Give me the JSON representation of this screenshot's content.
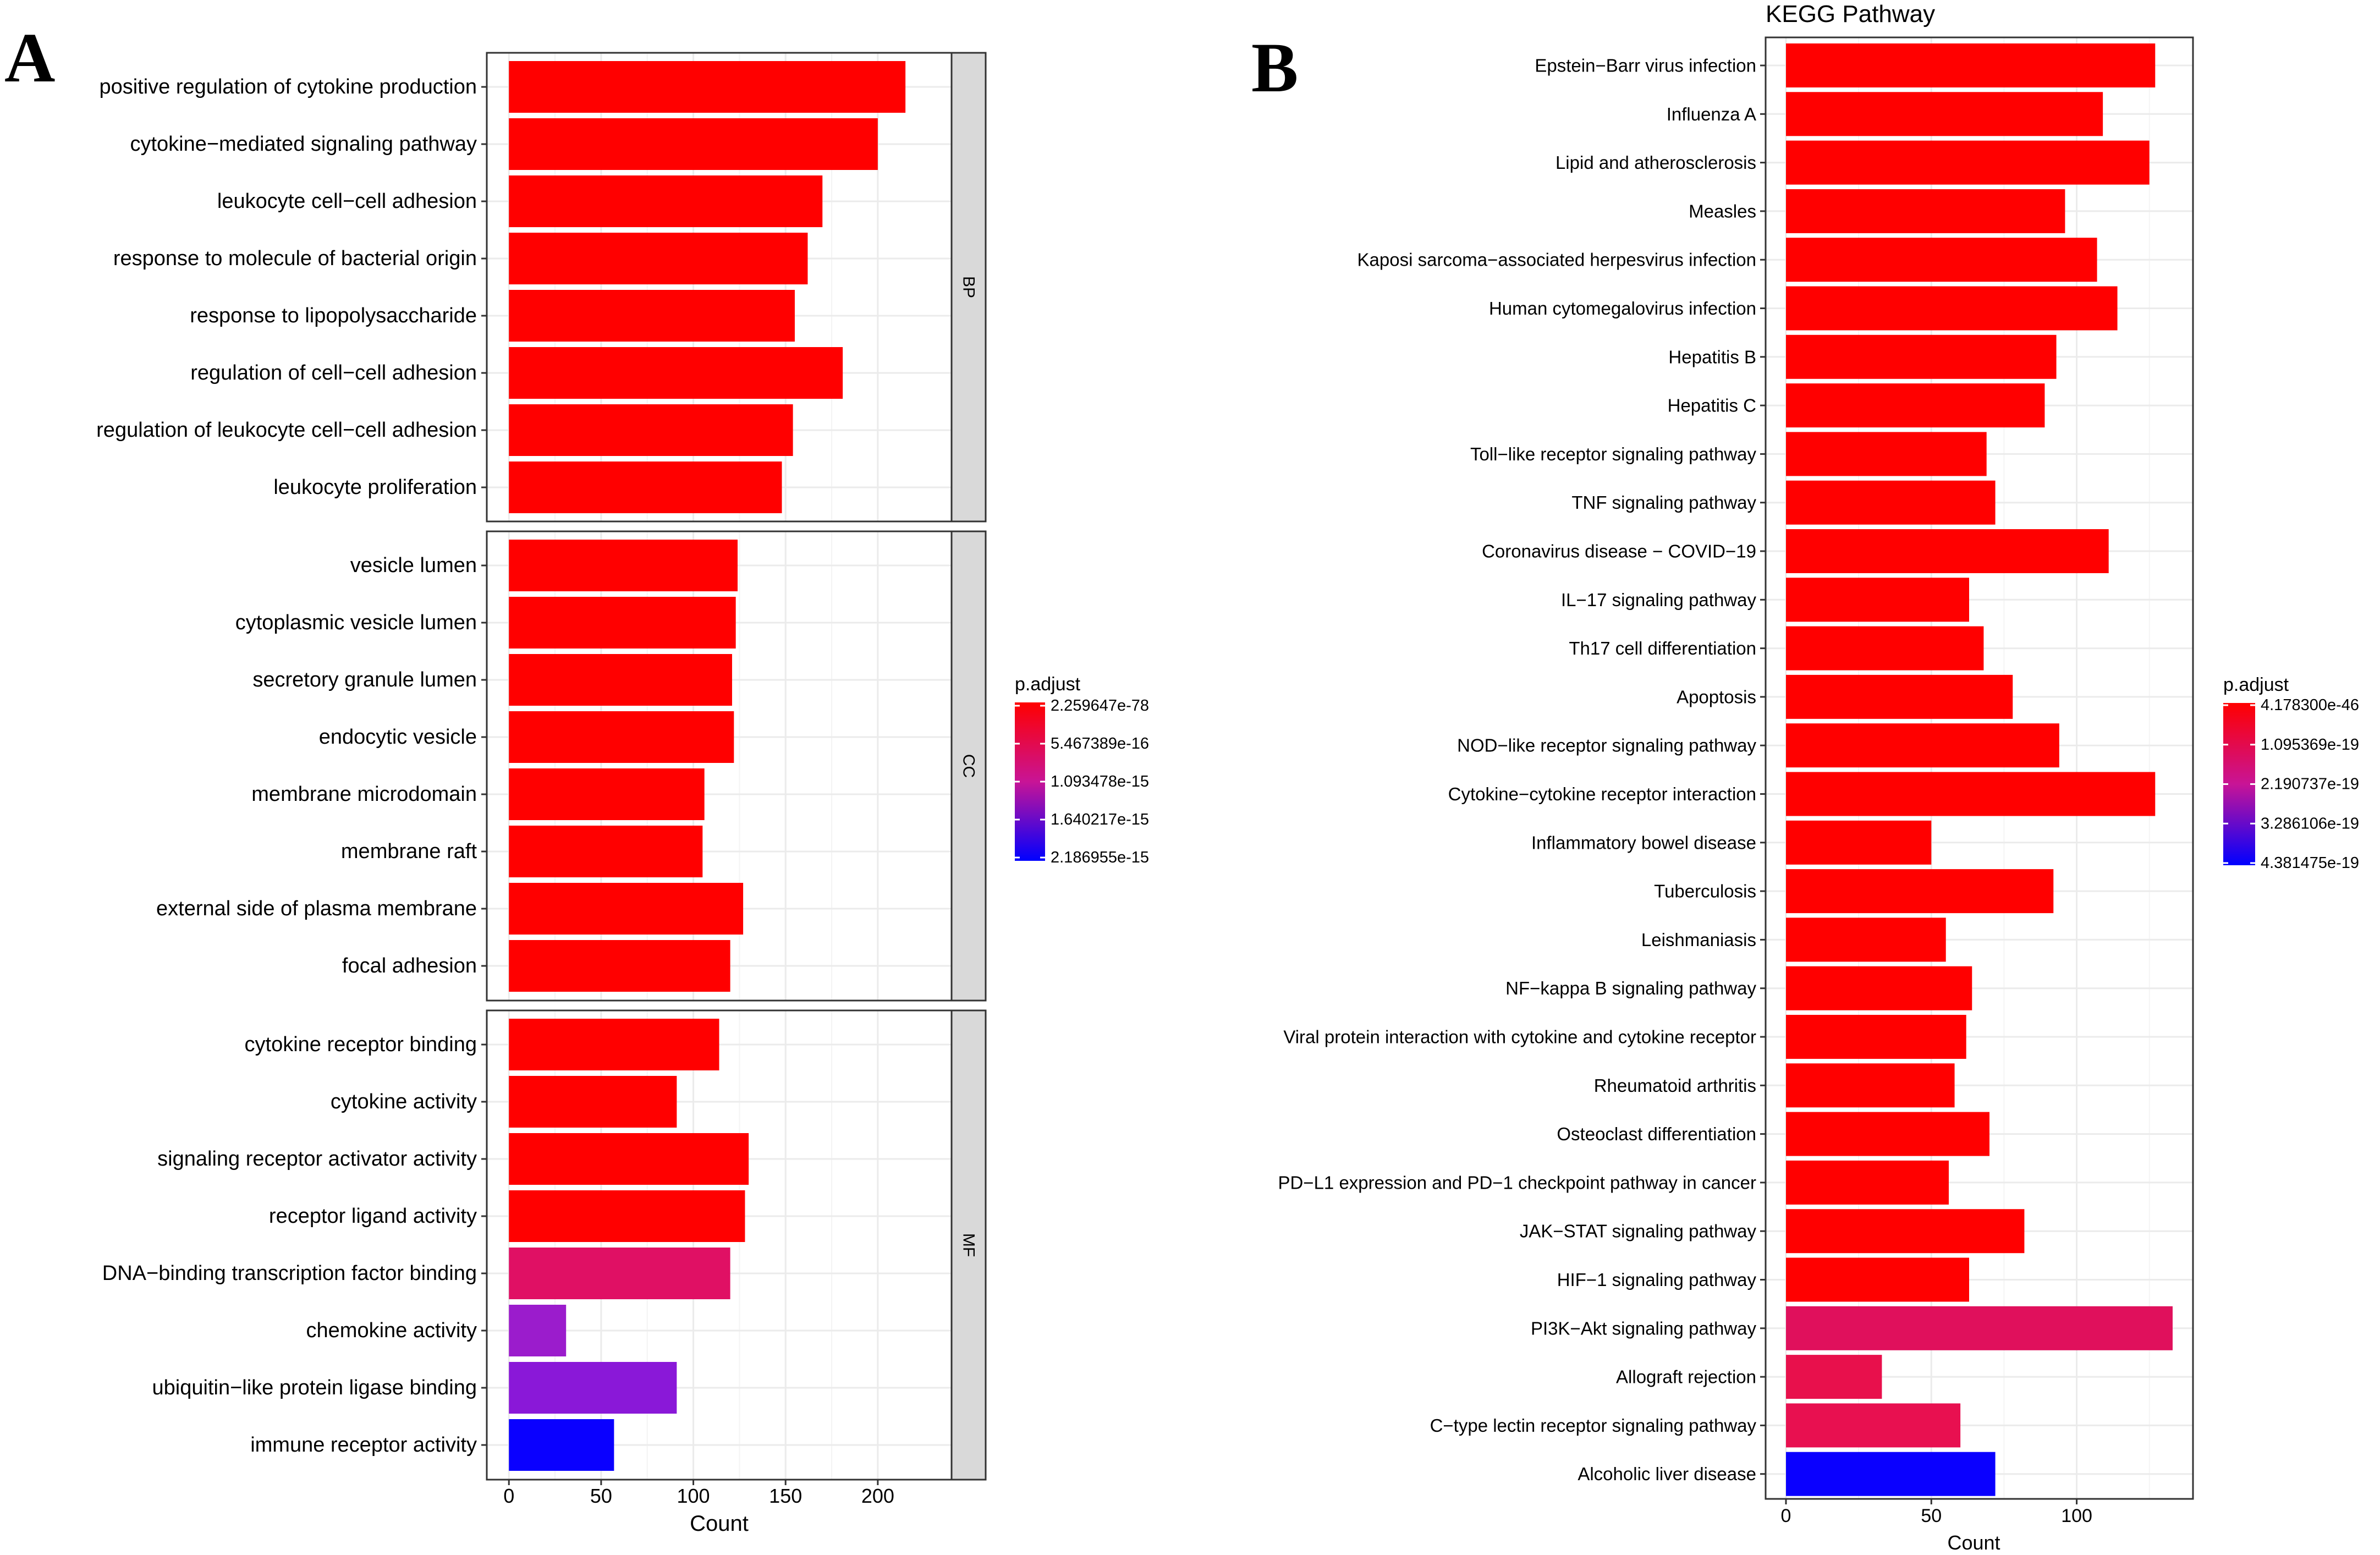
{
  "chart_data": [
    {
      "panel_label": "A",
      "type": "bar",
      "orientation": "horizontal",
      "title": "",
      "xlabel": "Count",
      "ylabel": "",
      "xlim": [
        -12,
        240
      ],
      "xticks": [
        0,
        50,
        100,
        150,
        200
      ],
      "grid": true,
      "legend": {
        "title": "p.adjust",
        "placement": "right",
        "ticks": [
          "2.259647e-78",
          "5.467389e-16",
          "1.093478e-15",
          "1.640217e-15",
          "2.186955e-15"
        ],
        "colors": [
          "#ff0000",
          "#0000ff"
        ]
      },
      "facets": [
        {
          "name": "BP",
          "categories": [
            "positive regulation of cytokine production",
            "cytokine−mediated signaling pathway",
            "leukocyte cell−cell adhesion",
            "response to molecule of bacterial origin",
            "response to lipopolysaccharide",
            "regulation of cell−cell adhesion",
            "regulation of leukocyte cell−cell adhesion",
            "leukocyte proliferation"
          ],
          "values": [
            215,
            200,
            170,
            162,
            155,
            181,
            154,
            148
          ],
          "colors": [
            "#ff0000",
            "#ff0000",
            "#ff0000",
            "#ff0000",
            "#ff0000",
            "#ff0000",
            "#ff0000",
            "#ff0000"
          ]
        },
        {
          "name": "CC",
          "categories": [
            "vesicle lumen",
            "cytoplasmic vesicle lumen",
            "secretory granule lumen",
            "endocytic vesicle",
            "membrane microdomain",
            "membrane raft",
            "external side of plasma membrane",
            "focal adhesion"
          ],
          "values": [
            124,
            123,
            121,
            122,
            106,
            105,
            127,
            120
          ],
          "colors": [
            "#ff0000",
            "#ff0000",
            "#ff0000",
            "#ff0000",
            "#ff0000",
            "#ff0000",
            "#ff0000",
            "#ff0000"
          ]
        },
        {
          "name": "MF",
          "categories": [
            "cytokine receptor binding",
            "cytokine activity",
            "signaling receptor activator activity",
            "receptor ligand activity",
            "DNA−binding transcription factor binding",
            "chemokine activity",
            "ubiquitin−like protein ligase binding",
            "immune receptor activity"
          ],
          "values": [
            114,
            91,
            130,
            128,
            120,
            31,
            91,
            57
          ],
          "colors": [
            "#ff0000",
            "#ff0000",
            "#ff0000",
            "#ff0000",
            "#e01064",
            "#9b1ccc",
            "#8a18d8",
            "#0a00ff"
          ]
        }
      ]
    },
    {
      "panel_label": "B",
      "type": "bar",
      "orientation": "horizontal",
      "title": "KEGG Pathway",
      "xlabel": "Count",
      "ylabel": "",
      "xlim": [
        -7,
        140
      ],
      "xticks": [
        0,
        50,
        100
      ],
      "grid": true,
      "legend": {
        "title": "p.adjust",
        "placement": "right",
        "ticks": [
          "4.178300e-46",
          "1.095369e-19",
          "2.190737e-19",
          "3.286106e-19",
          "4.381475e-19"
        ],
        "colors": [
          "#ff0000",
          "#0000ff"
        ]
      },
      "categories": [
        "Epstein−Barr virus infection",
        "Influenza A",
        "Lipid and atherosclerosis",
        "Measles",
        "Kaposi sarcoma−associated herpesvirus infection",
        "Human cytomegalovirus infection",
        "Hepatitis B",
        "Hepatitis C",
        "Toll−like receptor signaling pathway",
        "TNF signaling pathway",
        "Coronavirus disease − COVID−19",
        "IL−17 signaling pathway",
        "Th17 cell differentiation",
        "Apoptosis",
        "NOD−like receptor signaling pathway",
        "Cytokine−cytokine receptor interaction",
        "Inflammatory bowel disease",
        "Tuberculosis",
        "Leishmaniasis",
        "NF−kappa B signaling pathway",
        "Viral protein interaction with cytokine and cytokine receptor",
        "Rheumatoid arthritis",
        "Osteoclast differentiation",
        "PD−L1 expression and PD−1 checkpoint pathway in cancer",
        "JAK−STAT signaling pathway",
        "HIF−1 signaling pathway",
        "PI3K−Akt signaling pathway",
        "Allograft rejection",
        "C−type lectin receptor signaling pathway",
        "Alcoholic liver disease"
      ],
      "values": [
        127,
        109,
        125,
        96,
        107,
        114,
        93,
        89,
        69,
        72,
        111,
        63,
        68,
        78,
        94,
        127,
        50,
        92,
        55,
        64,
        62,
        58,
        70,
        56,
        82,
        63,
        133,
        33,
        60,
        72
      ],
      "colors": [
        "#ff0000",
        "#ff0000",
        "#ff0000",
        "#ff0000",
        "#ff0000",
        "#ff0000",
        "#ff0000",
        "#ff0000",
        "#ff0000",
        "#ff0000",
        "#ff0000",
        "#ff0000",
        "#ff0000",
        "#ff0000",
        "#ff0000",
        "#ff0000",
        "#ff0000",
        "#ff0000",
        "#ff0000",
        "#ff0000",
        "#ff0000",
        "#ff0000",
        "#ff0000",
        "#ff0000",
        "#ff0000",
        "#ff0000",
        "#e0105c",
        "#e8104c",
        "#e81050",
        "#0a00ff"
      ]
    }
  ]
}
